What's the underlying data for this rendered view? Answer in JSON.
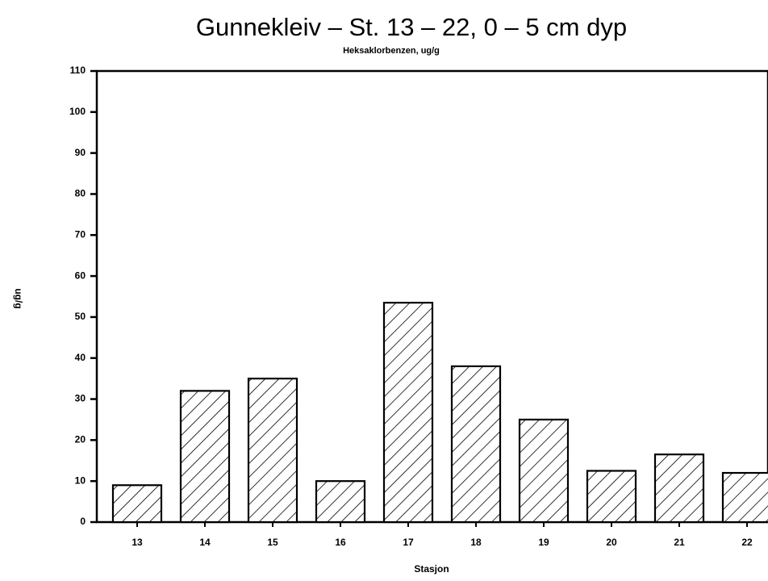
{
  "chart_data": {
    "type": "bar",
    "title": "Gunnekleiv – St. 13 – 22, 0 – 5 cm dyp",
    "subtitle": "Heksaklorbenzen, ug/g",
    "y_label": "ug/g",
    "x_label": "Stasjon",
    "categories": [
      "13",
      "14",
      "15",
      "16",
      "17",
      "18",
      "19",
      "20",
      "21",
      "22"
    ],
    "values": [
      9,
      32,
      35,
      10,
      53.5,
      38,
      25,
      12.5,
      16.5,
      12
    ],
    "color": "#000000",
    "ylim": [
      0,
      110
    ],
    "yticks": [
      0,
      10,
      20,
      30,
      40,
      50,
      60,
      70,
      80,
      90,
      100,
      110
    ],
    "grid": false
  }
}
